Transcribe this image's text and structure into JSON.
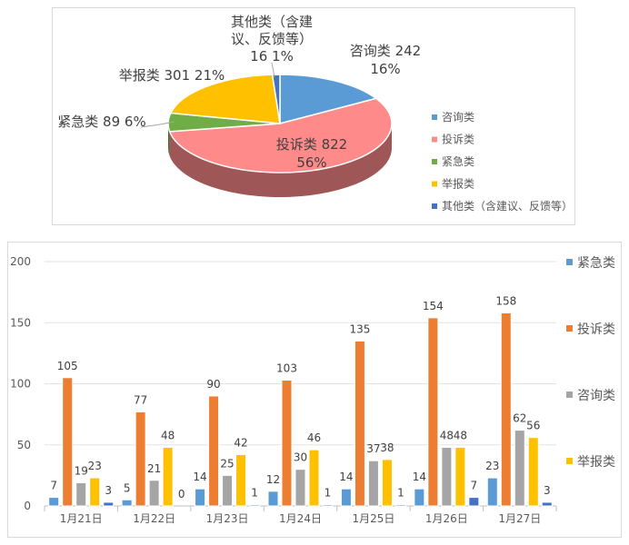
{
  "chart_data": [
    {
      "type": "pie",
      "categories": [
        "咨询类",
        "投诉类",
        "紧急类",
        "举报类",
        "其他类（含建议、反馈等）"
      ],
      "values": [
        242,
        822,
        89,
        301,
        16
      ],
      "percent_labels": [
        "16%",
        "56%",
        "6%",
        "21%",
        "1%"
      ],
      "colors": [
        "#5b9bd5",
        "#ff8a8a",
        "#70ad47",
        "#ffc000",
        "#4472c4"
      ],
      "slice_labels": [
        [
          "咨询类 242",
          "16%"
        ],
        [
          "投诉类 822",
          "56%"
        ],
        [
          "紧急类 89 6%"
        ],
        [
          "举报类 301 21%"
        ],
        [
          "其他类（含建",
          "议、反馈等）",
          "16 1%"
        ]
      ],
      "legend_labels": [
        "咨询类",
        "投诉类",
        "紧急类",
        "举报类",
        "其他类（含建议、反馈等）"
      ],
      "legend_position": "right",
      "style": "3d"
    },
    {
      "type": "bar",
      "categories": [
        "1月21日",
        "1月22日",
        "1月23日",
        "1月24日",
        "1月25日",
        "1月26日",
        "1月27日"
      ],
      "series": [
        {
          "name": "紧急类",
          "color": "#5b9bd5",
          "values": [
            7,
            5,
            14,
            12,
            14,
            14,
            23
          ]
        },
        {
          "name": "投诉类",
          "color": "#ed7d31",
          "values": [
            105,
            77,
            90,
            103,
            135,
            154,
            158
          ]
        },
        {
          "name": "咨询类",
          "color": "#a5a5a5",
          "values": [
            19,
            21,
            25,
            30,
            37,
            48,
            62
          ]
        },
        {
          "name": "举报类",
          "color": "#ffc000",
          "values": [
            23,
            48,
            42,
            46,
            38,
            48,
            56
          ]
        },
        {
          "name": "",
          "color": "#4472c4",
          "values": [
            3,
            0,
            1,
            1,
            1,
            7,
            3
          ]
        }
      ],
      "yticks": [
        0,
        50,
        100,
        150,
        200
      ],
      "ylim": [
        0,
        200
      ],
      "grid": true,
      "legend_position": "right"
    }
  ]
}
